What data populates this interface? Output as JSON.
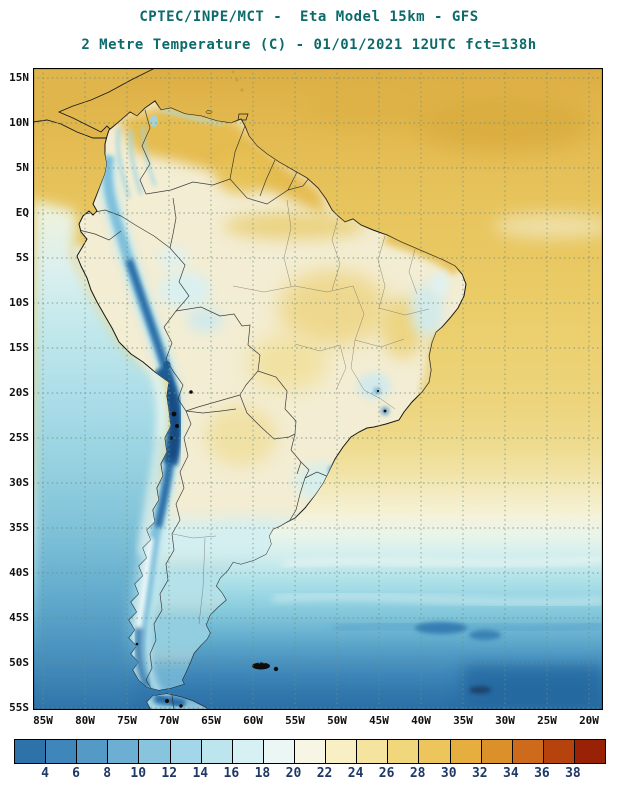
{
  "header": {
    "line1": "CPTEC/INPE/MCT -  Eta Model 15km - GFS",
    "line2": "2 Metre Temperature (C) - 01/01/2021 12UTC fct=138h",
    "title_color": "#0c6a6a"
  },
  "map": {
    "lat_labels": [
      "15N",
      "10N",
      "5N",
      "EQ",
      "5S",
      "10S",
      "15S",
      "20S",
      "25S",
      "30S",
      "35S",
      "40S",
      "45S",
      "50S",
      "55S"
    ],
    "lon_labels": [
      "85W",
      "80W",
      "75W",
      "70W",
      "65W",
      "60W",
      "55W",
      "50W",
      "45W",
      "40W",
      "35W",
      "30W",
      "25W",
      "20W"
    ],
    "grid": "dotted 5-degree graticule",
    "region": "South America"
  },
  "colorbar": {
    "units": "C",
    "tick_labels": [
      "4",
      "6",
      "8",
      "10",
      "12",
      "14",
      "16",
      "18",
      "20",
      "22",
      "24",
      "26",
      "28",
      "30",
      "32",
      "34",
      "36",
      "38"
    ],
    "colors": [
      "#2e72aa",
      "#3f86bb",
      "#5599c7",
      "#6dafd3",
      "#88c4de",
      "#a3d6e8",
      "#bde5ee",
      "#d6f0f3",
      "#eaf7f5",
      "#f7f5e3",
      "#f8efc5",
      "#f5e4a0",
      "#f1d77c",
      "#ecc65c",
      "#e5ae3e",
      "#dc902a",
      "#cd6a1b",
      "#b6430e",
      "#992106"
    ],
    "label_color": "#1f3864"
  }
}
